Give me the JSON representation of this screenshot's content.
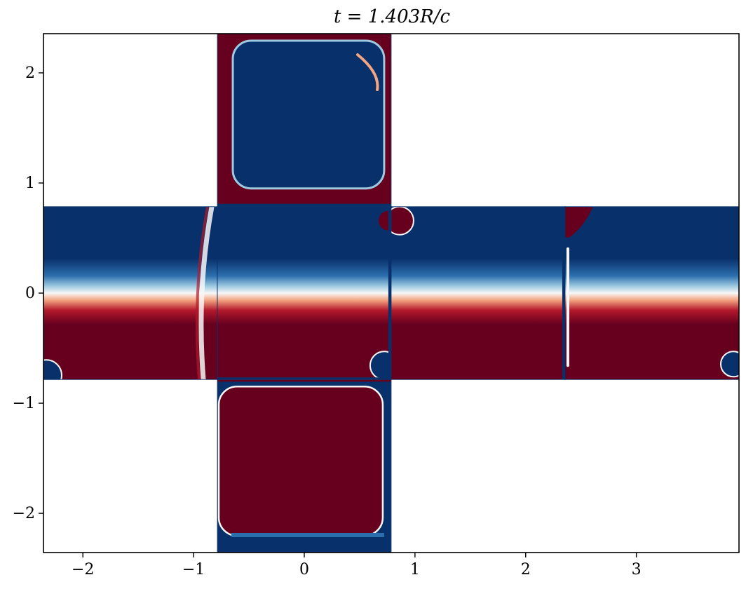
{
  "chart_data": {
    "type": "heatmap",
    "title": "t = 1.403R/c",
    "xlabel": "",
    "ylabel": "",
    "xlim": [
      -2.356,
      3.927
    ],
    "ylim": [
      -2.356,
      2.356
    ],
    "x_ticks": [
      {
        "value": -2,
        "label": "−2"
      },
      {
        "value": -1,
        "label": "−1"
      },
      {
        "value": 0,
        "label": "0"
      },
      {
        "value": 1,
        "label": "1"
      },
      {
        "value": 2,
        "label": "2"
      },
      {
        "value": 3,
        "label": "3"
      }
    ],
    "y_ticks": [
      {
        "value": 2,
        "label": "2"
      },
      {
        "value": 1,
        "label": "1"
      },
      {
        "value": 0,
        "label": "0"
      },
      {
        "value": -1,
        "label": "−1"
      },
      {
        "value": -2,
        "label": "−2"
      }
    ],
    "grid": false,
    "colormap": "RdBu",
    "colors": {
      "blue": "#08306b",
      "red": "#67001f",
      "white": "#f7f7f7"
    },
    "panels": [
      {
        "name": "top-face",
        "x": [
          -0.785,
          0.785
        ],
        "y": [
          0.785,
          2.356
        ],
        "pattern": "top"
      },
      {
        "name": "left-face",
        "x": [
          -2.356,
          -0.785
        ],
        "y": [
          -0.785,
          0.785
        ],
        "pattern": "left"
      },
      {
        "name": "center-face",
        "x": [
          -0.785,
          0.785
        ],
        "y": [
          -0.785,
          0.785
        ],
        "pattern": "center"
      },
      {
        "name": "right-face",
        "x": [
          0.785,
          2.356
        ],
        "y": [
          -0.785,
          0.785
        ],
        "pattern": "right"
      },
      {
        "name": "far-right-face",
        "x": [
          2.356,
          3.927
        ],
        "y": [
          -0.785,
          0.785
        ],
        "pattern": "farright"
      },
      {
        "name": "bottom-face",
        "x": [
          -0.785,
          0.785
        ],
        "y": [
          -2.356,
          -0.785
        ],
        "pattern": "bottom"
      }
    ]
  }
}
